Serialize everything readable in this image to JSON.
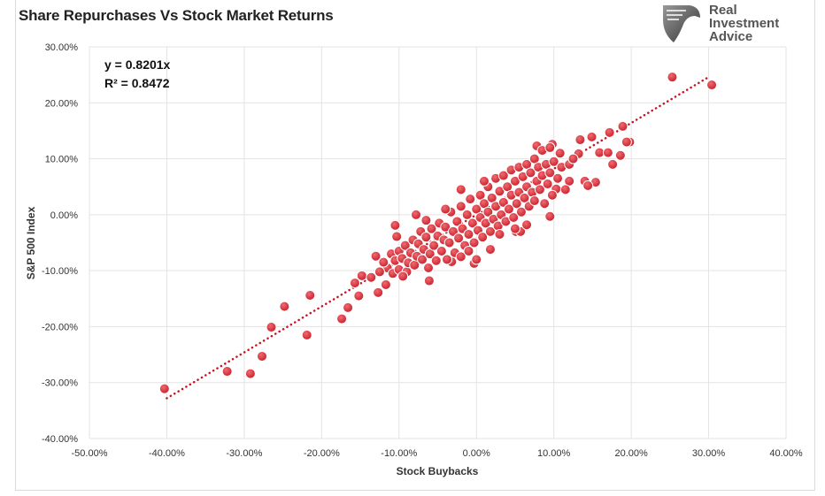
{
  "chart_data": {
    "type": "scatter",
    "title": "Share Repurchases Vs Stock Market Returns",
    "xlabel": "Stock Buybacks",
    "ylabel": "S&P 500 Index",
    "xlim": [
      -50,
      40
    ],
    "ylim": [
      -40,
      30
    ],
    "xticks": [
      -50,
      -40,
      -30,
      -20,
      -10,
      0,
      10,
      20,
      30,
      40
    ],
    "yticks": [
      -40,
      -30,
      -20,
      -10,
      0,
      10,
      20,
      30
    ],
    "xtick_labels": [
      "-50.00%",
      "-40.00%",
      "-30.00%",
      "-20.00%",
      "-10.00%",
      "0.00%",
      "10.00%",
      "20.00%",
      "30.00%",
      "40.00%"
    ],
    "ytick_labels": [
      "-40.00%",
      "-30.00%",
      "-20.00%",
      "-10.00%",
      "0.00%",
      "10.00%",
      "20.00%",
      "30.00%"
    ],
    "grid": true,
    "point_color": "#d42a34",
    "trendline": {
      "slope": 0.8201,
      "x_range": [
        -40,
        30
      ],
      "color": "#c8101e",
      "style": "dotted",
      "equation": "y = 0.8201x",
      "r2": "R² = 0.8472"
    },
    "points": [
      [
        25.3,
        24.6
      ],
      [
        30.4,
        23.2
      ],
      [
        -40.3,
        -31.1
      ],
      [
        -32.2,
        -28.0
      ],
      [
        -29.2,
        -28.4
      ],
      [
        -27.7,
        -25.3
      ],
      [
        -26.5,
        -20.1
      ],
      [
        -24.8,
        -16.4
      ],
      [
        -21.5,
        -14.4
      ],
      [
        -21.9,
        -21.5
      ],
      [
        -17.4,
        -18.6
      ],
      [
        -16.6,
        -16.6
      ],
      [
        -15.7,
        -12.2
      ],
      [
        -15.2,
        -14.5
      ],
      [
        -14.8,
        -10.9
      ],
      [
        -12.7,
        -13.9
      ],
      [
        -13.0,
        -7.4
      ],
      [
        -11.7,
        -12.5
      ],
      [
        -13.6,
        -11.2
      ],
      [
        -6.1,
        -11.8
      ],
      [
        -7.8,
        0
      ],
      [
        -10.3,
        -3.9
      ],
      [
        -10.5,
        -1.9
      ],
      [
        9.5,
        -0.3
      ],
      [
        14.0,
        6.0
      ],
      [
        15.4,
        5.8
      ],
      [
        14.4,
        5.2
      ],
      [
        18.6,
        10.6
      ],
      [
        19.8,
        13.0
      ],
      [
        19.4,
        13.0
      ],
      [
        18.9,
        15.8
      ],
      [
        17.2,
        14.7
      ],
      [
        14.9,
        13.9
      ],
      [
        13.4,
        13.4
      ],
      [
        15.9,
        11.1
      ],
      [
        17.0,
        11.1
      ],
      [
        17.6,
        9.0
      ],
      [
        13.2,
        10.9
      ],
      [
        12.0,
        6.0
      ],
      [
        10.3,
        4.6
      ],
      [
        9.8,
        12.6
      ],
      [
        7.8,
        12.3
      ],
      [
        -0.3,
        -8.7
      ],
      [
        -3.2,
        -8.4
      ],
      [
        1.8,
        -6.2
      ],
      [
        5.1,
        -3.0
      ],
      [
        5.7,
        -3.0
      ],
      [
        -11.5,
        -9.5
      ],
      [
        -11,
        -7
      ],
      [
        -10.8,
        -10.5
      ],
      [
        -10.5,
        -8.2
      ],
      [
        -10,
        -6.5
      ],
      [
        -10,
        -9.8
      ],
      [
        -9.6,
        -7.8
      ],
      [
        -9.2,
        -5.5
      ],
      [
        -9,
        -10.2
      ],
      [
        -8.8,
        -8.6
      ],
      [
        -8.5,
        -6.8
      ],
      [
        -8.2,
        -4.5
      ],
      [
        -8,
        -9
      ],
      [
        -7.7,
        -7.4
      ],
      [
        -7.5,
        -5.2
      ],
      [
        -7.2,
        -3
      ],
      [
        -7,
        -8
      ],
      [
        -6.8,
        -6.2
      ],
      [
        -6.5,
        -4
      ],
      [
        -6.2,
        -9.5
      ],
      [
        -6,
        -7
      ],
      [
        -5.8,
        -2.5
      ],
      [
        -5.5,
        -5.5
      ],
      [
        -5.2,
        -8.2
      ],
      [
        -5,
        -3.8
      ],
      [
        -4.8,
        -1.5
      ],
      [
        -4.5,
        -6.5
      ],
      [
        -4.2,
        -4.5
      ],
      [
        -4,
        -2.2
      ],
      [
        -3.8,
        -8
      ],
      [
        -3.5,
        -5
      ],
      [
        -3.3,
        0.5
      ],
      [
        -3,
        -3
      ],
      [
        -2.8,
        -6.8
      ],
      [
        -2.5,
        -1.2
      ],
      [
        -2.3,
        -4.2
      ],
      [
        -2,
        1.5
      ],
      [
        -2,
        -7.5
      ],
      [
        -1.8,
        -2.5
      ],
      [
        -1.5,
        -5.5
      ],
      [
        -1.2,
        0
      ],
      [
        -1,
        -3.5
      ],
      [
        -0.8,
        2.8
      ],
      [
        -0.5,
        -1.5
      ],
      [
        -0.3,
        -5
      ],
      [
        0,
        1
      ],
      [
        0.2,
        -2.8
      ],
      [
        0.5,
        3.5
      ],
      [
        0.5,
        -0.5
      ],
      [
        0.8,
        -4
      ],
      [
        1,
        2
      ],
      [
        1.2,
        -1.5
      ],
      [
        1.5,
        5
      ],
      [
        1.5,
        0.5
      ],
      [
        1.8,
        -3
      ],
      [
        2,
        3
      ],
      [
        2.2,
        -0.8
      ],
      [
        2.5,
        6.5
      ],
      [
        2.5,
        1.5
      ],
      [
        2.8,
        -2
      ],
      [
        3,
        4.2
      ],
      [
        3.2,
        0
      ],
      [
        3.5,
        7
      ],
      [
        3.5,
        2.2
      ],
      [
        3.8,
        -1.2
      ],
      [
        4,
        5
      ],
      [
        4.2,
        1
      ],
      [
        4.5,
        8
      ],
      [
        4.5,
        3.5
      ],
      [
        4.8,
        -0.5
      ],
      [
        5,
        6
      ],
      [
        5.2,
        2
      ],
      [
        5.5,
        8.5
      ],
      [
        5.5,
        4
      ],
      [
        5.8,
        0.5
      ],
      [
        6,
        6.8
      ],
      [
        6.2,
        3
      ],
      [
        6.5,
        9
      ],
      [
        6.5,
        5
      ],
      [
        6.8,
        1.5
      ],
      [
        7,
        7.5
      ],
      [
        7.2,
        4
      ],
      [
        7.5,
        10
      ],
      [
        7.5,
        2.5
      ],
      [
        7.8,
        6
      ],
      [
        8,
        8.5
      ],
      [
        8.2,
        4.5
      ],
      [
        8.5,
        11.5
      ],
      [
        8.5,
        7
      ],
      [
        8.8,
        2
      ],
      [
        9,
        9
      ],
      [
        9.2,
        5.5
      ],
      [
        9.5,
        12
      ],
      [
        9.5,
        7.5
      ],
      [
        9.8,
        3.5
      ],
      [
        10,
        9.5
      ],
      [
        10.5,
        6.5
      ],
      [
        10.8,
        11
      ],
      [
        11,
        8.5
      ],
      [
        11.5,
        4.5
      ],
      [
        12,
        9
      ],
      [
        12.5,
        10
      ],
      [
        -12.5,
        -10.2
      ],
      [
        -12,
        -8.5
      ],
      [
        -9.5,
        -11
      ],
      [
        -2,
        4.5
      ],
      [
        -4,
        1
      ],
      [
        1,
        6
      ],
      [
        -6.5,
        -1
      ],
      [
        3,
        -3.5
      ],
      [
        5,
        -2.5
      ],
      [
        6.5,
        -1.8
      ],
      [
        0,
        -8
      ],
      [
        -1,
        -6.5
      ]
    ]
  },
  "logo": {
    "text_lines": [
      "Real",
      "Investment",
      "Advice"
    ]
  }
}
